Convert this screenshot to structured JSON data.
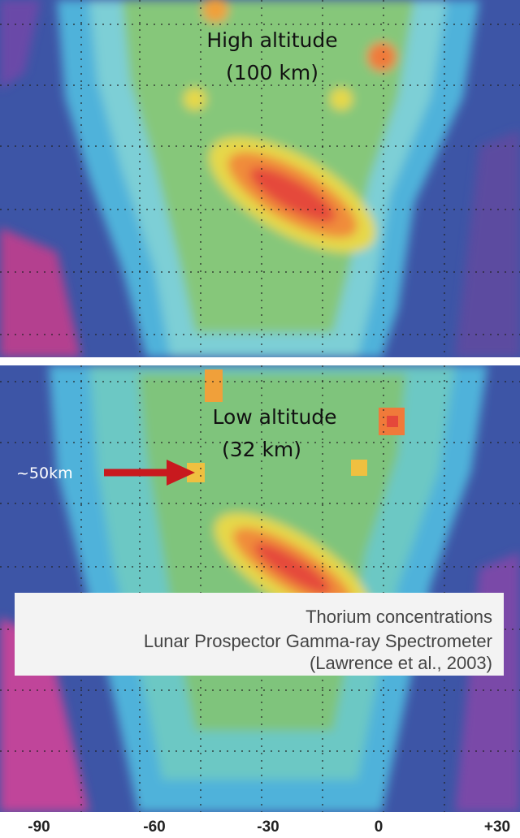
{
  "top_panel": {
    "title": "High altitude",
    "subtitle": "(100 km)"
  },
  "bottom_panel": {
    "title": "Low altitude",
    "subtitle": "(32 km)",
    "arrow_label": "~50km"
  },
  "caption": {
    "line1": "Thorium concentrations",
    "line2": "Lunar Prospector Gamma-ray Spectrometer",
    "citation": "(Lawrence et al., 2003)"
  },
  "x_axis": {
    "labels": [
      "-90",
      "-60",
      "-30",
      "0",
      "+30"
    ]
  }
}
